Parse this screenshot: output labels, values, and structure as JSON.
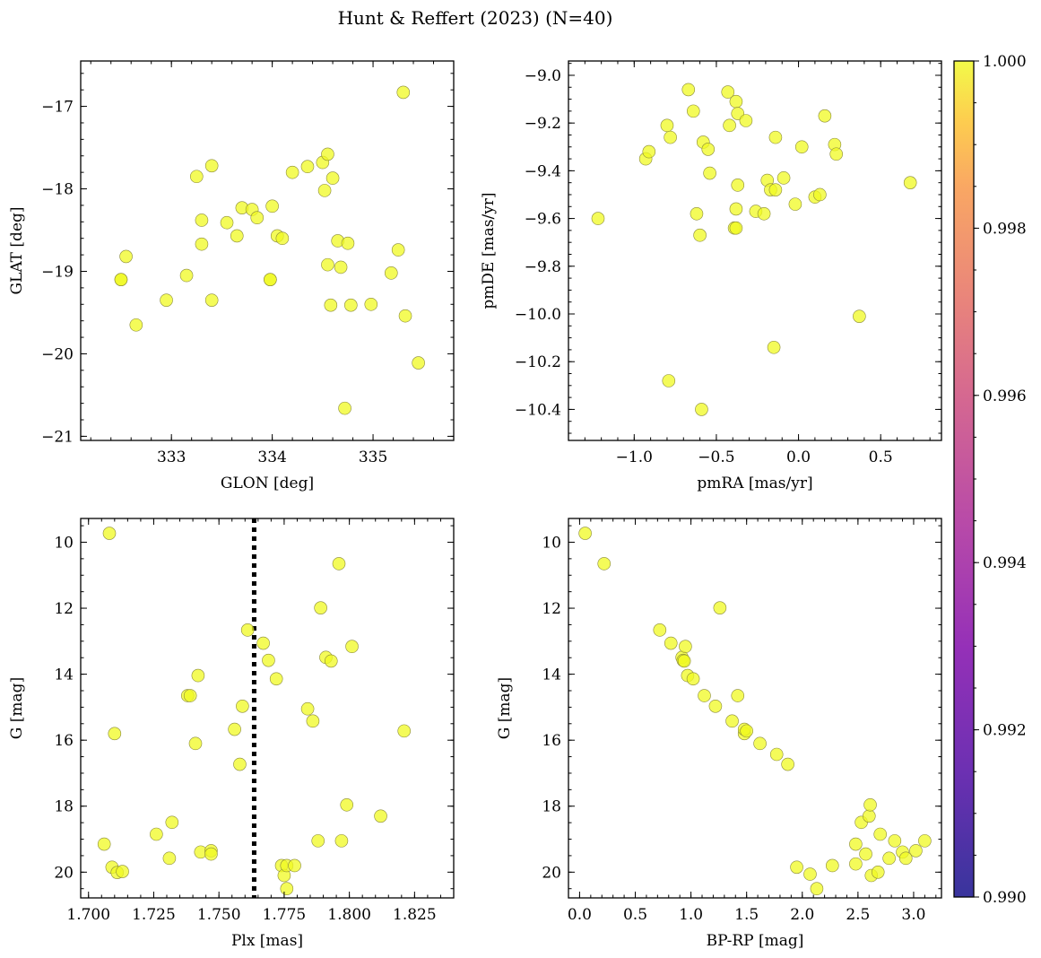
{
  "figure": {
    "title": "Hunt & Reffert (2023) (N=40)"
  },
  "colors": {
    "point": "#f0f921",
    "point_edge": "#8a8a3a"
  },
  "colorbar": {
    "ticks": [
      "0.990",
      "0.992",
      "0.994",
      "0.996",
      "0.998",
      "1.000"
    ],
    "range": [
      0.99,
      1.0
    ],
    "colormap": "plasma"
  },
  "chart_data": [
    {
      "id": "pos",
      "type": "scatter",
      "xlabel": "GLON [deg]",
      "ylabel": "GLAT [deg]",
      "xlim": [
        332.1,
        335.8
      ],
      "ylim": [
        -21.05,
        -16.45
      ],
      "y_inverted": false,
      "xticks": [
        333,
        334,
        335
      ],
      "xtick_labels": [
        "333",
        "334",
        "335"
      ],
      "yticks": [
        -21,
        -20,
        -19,
        -18,
        -17
      ],
      "ytick_labels": [
        "−21",
        "−20",
        "−19",
        "−18",
        "−17"
      ],
      "x": [
        335.3,
        332.5,
        332.55,
        332.65,
        332.95,
        333.15,
        333.25,
        333.3,
        333.3,
        333.4,
        333.4,
        333.55,
        333.65,
        333.7,
        333.8,
        333.85,
        333.98,
        334.0,
        333.98,
        334.05,
        334.1,
        334.2,
        334.35,
        334.5,
        334.52,
        334.55,
        334.55,
        334.6,
        334.65,
        334.68,
        334.72,
        334.75,
        334.78,
        334.98,
        335.18,
        335.25,
        335.32,
        335.45,
        332.5,
        334.58
      ],
      "y": [
        -16.83,
        -19.1,
        -18.82,
        -19.65,
        -19.35,
        -19.05,
        -17.85,
        -18.38,
        -18.67,
        -17.72,
        -19.35,
        -18.41,
        -18.57,
        -18.23,
        -18.25,
        -18.35,
        -19.1,
        -18.21,
        -19.1,
        -18.57,
        -18.6,
        -17.8,
        -17.73,
        -17.68,
        -18.02,
        -17.58,
        -18.92,
        -17.87,
        -18.63,
        -18.95,
        -20.66,
        -18.66,
        -19.41,
        -19.4,
        -19.02,
        -18.74,
        -19.54,
        -20.11,
        -19.1,
        -19.41
      ]
    },
    {
      "id": "pm",
      "type": "scatter",
      "xlabel": "pmRA [mas/yr]",
      "ylabel": "pmDE [mas/yr]",
      "xlim": [
        -1.4,
        0.87
      ],
      "ylim": [
        -10.53,
        -8.94
      ],
      "y_inverted": false,
      "xticks": [
        -1.0,
        -0.5,
        0.0,
        0.5
      ],
      "xtick_labels": [
        "−1.0",
        "−0.5",
        "0.0",
        "0.5"
      ],
      "yticks": [
        -10.4,
        -10.2,
        -10.0,
        -9.8,
        -9.6,
        -9.4,
        -9.2,
        -9.0
      ],
      "ytick_labels": [
        "−10.4",
        "−10.2",
        "−10.0",
        "−9.8",
        "−9.6",
        "−9.4",
        "−9.2",
        "−9.0"
      ],
      "x": [
        -1.22,
        -0.93,
        -0.91,
        -0.8,
        -0.79,
        -0.67,
        -0.64,
        -0.62,
        -0.6,
        -0.59,
        -0.58,
        -0.55,
        -0.54,
        -0.43,
        -0.42,
        -0.39,
        -0.38,
        -0.38,
        -0.37,
        -0.32,
        -0.26,
        -0.21,
        -0.19,
        -0.17,
        -0.15,
        -0.14,
        -0.14,
        -0.09,
        -0.02,
        0.02,
        0.1,
        0.13,
        0.16,
        0.22,
        0.23,
        0.37,
        0.68,
        -0.78,
        -0.38,
        -0.37
      ],
      "y": [
        -9.6,
        -9.35,
        -9.32,
        -9.21,
        -10.28,
        -9.06,
        -9.15,
        -9.58,
        -9.67,
        -10.4,
        -9.28,
        -9.31,
        -9.41,
        -9.07,
        -9.21,
        -9.64,
        -9.11,
        -9.56,
        -9.16,
        -9.19,
        -9.57,
        -9.58,
        -9.44,
        -9.48,
        -10.14,
        -9.26,
        -9.48,
        -9.43,
        -9.54,
        -9.3,
        -9.51,
        -9.5,
        -9.17,
        -9.29,
        -9.33,
        -10.01,
        -9.45,
        -9.26,
        -9.64,
        -9.46
      ]
    },
    {
      "id": "plx",
      "type": "scatter",
      "xlabel": "Plx [mas]",
      "ylabel": "G [mag]",
      "xlim": [
        1.697,
        1.84
      ],
      "ylim": [
        20.78,
        9.28
      ],
      "y_inverted": true,
      "xticks": [
        1.7,
        1.725,
        1.75,
        1.775,
        1.8,
        1.825
      ],
      "xtick_labels": [
        "1.700",
        "1.725",
        "1.750",
        "1.775",
        "1.800",
        "1.825"
      ],
      "yticks": [
        10,
        12,
        14,
        16,
        18,
        20
      ],
      "ytick_labels": [
        "10",
        "12",
        "14",
        "16",
        "18",
        "20"
      ],
      "vline_x": 1.7635,
      "x": [
        1.708,
        1.71,
        1.706,
        1.709,
        1.711,
        1.713,
        1.726,
        1.731,
        1.732,
        1.738,
        1.739,
        1.741,
        1.742,
        1.743,
        1.747,
        1.747,
        1.756,
        1.758,
        1.759,
        1.761,
        1.767,
        1.769,
        1.772,
        1.774,
        1.775,
        1.776,
        1.776,
        1.779,
        1.784,
        1.786,
        1.788,
        1.789,
        1.791,
        1.793,
        1.796,
        1.797,
        1.799,
        1.801,
        1.812,
        1.821
      ],
      "y": [
        9.73,
        15.8,
        19.15,
        19.85,
        20.01,
        19.98,
        18.85,
        19.58,
        18.49,
        14.65,
        14.65,
        16.1,
        14.04,
        19.39,
        19.35,
        19.45,
        15.67,
        16.73,
        14.97,
        12.66,
        13.06,
        13.58,
        14.14,
        19.8,
        20.1,
        20.5,
        19.8,
        19.8,
        15.05,
        15.42,
        19.05,
        11.99,
        13.49,
        13.6,
        10.65,
        19.05,
        17.96,
        13.16,
        18.3,
        15.72
      ]
    },
    {
      "id": "cmd",
      "type": "scatter",
      "xlabel": "BP-RP [mag]",
      "ylabel": "G [mag]",
      "xlim": [
        -0.1,
        3.25
      ],
      "ylim": [
        20.78,
        9.28
      ],
      "y_inverted": true,
      "xticks": [
        0.0,
        0.5,
        1.0,
        1.5,
        2.0,
        2.5,
        3.0
      ],
      "xtick_labels": [
        "0.0",
        "0.5",
        "1.0",
        "1.5",
        "2.0",
        "2.5",
        "3.0"
      ],
      "yticks": [
        10,
        12,
        14,
        16,
        18,
        20
      ],
      "ytick_labels": [
        "10",
        "12",
        "14",
        "16",
        "18",
        "20"
      ],
      "x": [
        0.05,
        0.22,
        0.72,
        0.82,
        0.92,
        0.93,
        0.95,
        0.97,
        1.02,
        1.12,
        1.22,
        1.26,
        1.37,
        1.42,
        1.48,
        1.48,
        1.5,
        1.62,
        1.77,
        1.87,
        1.95,
        2.07,
        2.13,
        2.27,
        2.48,
        2.48,
        2.53,
        2.57,
        2.6,
        2.61,
        2.62,
        2.68,
        2.7,
        2.78,
        2.83,
        2.9,
        3.02,
        3.1,
        2.93,
        0.94
      ],
      "y": [
        9.73,
        10.65,
        12.66,
        13.06,
        13.49,
        13.58,
        13.16,
        14.04,
        14.14,
        14.65,
        14.97,
        11.99,
        15.42,
        14.65,
        15.8,
        15.67,
        15.72,
        16.1,
        16.43,
        16.73,
        19.85,
        20.06,
        20.5,
        19.8,
        19.15,
        19.75,
        18.49,
        19.45,
        18.3,
        17.96,
        20.1,
        20.0,
        18.85,
        19.58,
        19.05,
        19.39,
        19.35,
        19.05,
        19.58,
        13.6
      ]
    }
  ]
}
